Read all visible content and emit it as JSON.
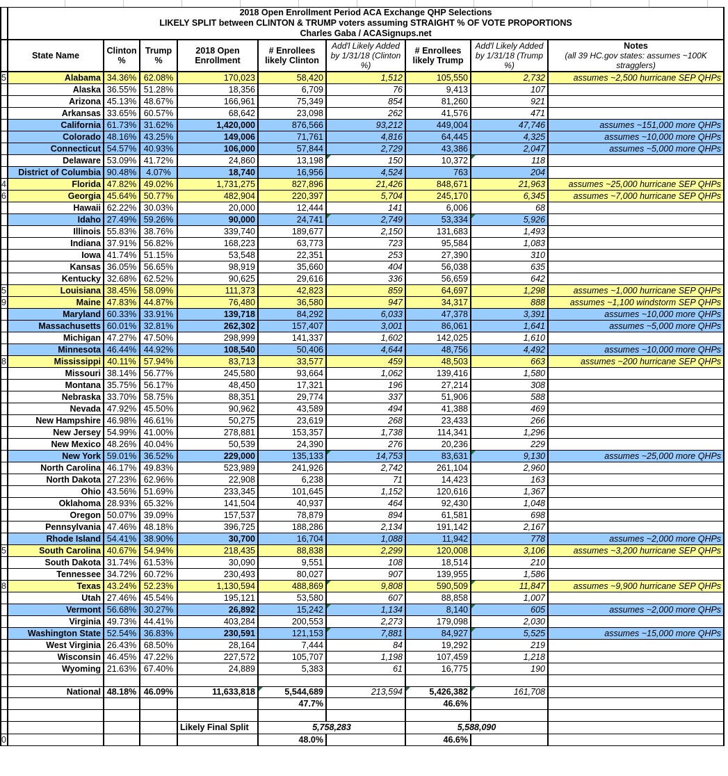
{
  "title": {
    "line1": "2018 Open Enrollment Period ACA Exchange QHP Selections",
    "line2": "LIKELY SPLIT between CLINTON & TRUMP voters assuming STRAIGHT % OF VOTE PROPORTIONS",
    "line3": "Charles Gaba / ACASignups.net"
  },
  "header": {
    "state": "State Name",
    "clinton": "Clinton %",
    "trump": "Trump %",
    "enrollment": "2018 Open Enrollment",
    "enrollees_clinton": "# Enrollees likely Clinton",
    "addl_clinton": "Add'l Likely Added by 1/31/18 (Clinton %)",
    "enrollees_trump": "# Enrollees likely Trump",
    "addl_trump": "Add'l Likely Added by 1/31/18 (Trump %)",
    "notes": "Notes",
    "notes_sub": "(all 39 HC.gov states: assumes ~100K stragglers)"
  },
  "colors": {
    "row_yellow": "#FFFF99",
    "row_blue": "#99CCFF",
    "national_yellow": "#FFFF00",
    "summary_yellow": "#FFFF99",
    "gridline": "#C9C9C9",
    "flag_green": "#207245",
    "border": "#000000"
  },
  "rows": [
    {
      "num": "5",
      "state": "Alabama",
      "clinton": "34.36%",
      "trump": "62.08%",
      "enrollment": "170,023",
      "clinton_enr": "58,420",
      "clinton_addl": "1,512",
      "trump_enr": "105,550",
      "trump_addl": "2,732",
      "note": "assumes ~2,500 hurricane SEP QHPs",
      "bg": "yellow",
      "bold": false,
      "flag": false
    },
    {
      "num": "",
      "state": "Alaska",
      "clinton": "36.55%",
      "trump": "51.28%",
      "enrollment": "18,356",
      "clinton_enr": "6,709",
      "clinton_addl": "76",
      "trump_enr": "9,413",
      "trump_addl": "107",
      "note": "",
      "bg": "white",
      "bold": false,
      "flag": false
    },
    {
      "num": "",
      "state": "Arizona",
      "clinton": "45.13%",
      "trump": "48.67%",
      "enrollment": "166,961",
      "clinton_enr": "75,349",
      "clinton_addl": "854",
      "trump_enr": "81,260",
      "trump_addl": "921",
      "note": "",
      "bg": "white",
      "bold": false,
      "flag": false
    },
    {
      "num": "",
      "state": "Arkansas",
      "clinton": "33.65%",
      "trump": "60.57%",
      "enrollment": "68,642",
      "clinton_enr": "23,098",
      "clinton_addl": "262",
      "trump_enr": "41,576",
      "trump_addl": "471",
      "note": "",
      "bg": "white",
      "bold": false,
      "flag": false
    },
    {
      "num": "",
      "state": "California",
      "clinton": "61.73%",
      "trump": "31.62%",
      "enrollment": "1,420,000",
      "clinton_enr": "876,566",
      "clinton_addl": "93,212",
      "trump_enr": "449,004",
      "trump_addl": "47,746",
      "note": "assumes ~151,000 more QHPs",
      "bg": "blue",
      "bold": true,
      "flag": false
    },
    {
      "num": "",
      "state": "Colorado",
      "clinton": "48.16%",
      "trump": "43.25%",
      "enrollment": "149,006",
      "clinton_enr": "71,761",
      "clinton_addl": "4,816",
      "trump_enr": "64,445",
      "trump_addl": "4,325",
      "note": "assumes ~10,000 more QHPs",
      "bg": "blue",
      "bold": true,
      "flag": false
    },
    {
      "num": "",
      "state": "Connecticut",
      "clinton": "54.57%",
      "trump": "40.93%",
      "enrollment": "106,000",
      "clinton_enr": "57,844",
      "clinton_addl": "2,729",
      "trump_enr": "43,386",
      "trump_addl": "2,047",
      "note": "assumes ~5,000 more QHPs",
      "bg": "blue",
      "bold": true,
      "flag": false
    },
    {
      "num": "",
      "state": "Delaware",
      "clinton": "53.09%",
      "trump": "41.72%",
      "enrollment": "24,860",
      "clinton_enr": "13,198",
      "clinton_addl": "150",
      "trump_enr": "10,372",
      "trump_addl": "118",
      "note": "",
      "bg": "white",
      "bold": false,
      "flag": true
    },
    {
      "num": "",
      "state": "District of Columbia",
      "clinton": "90.48%",
      "trump": "4.07%",
      "enrollment": "18,740",
      "clinton_enr": "16,956",
      "clinton_addl": "4,524",
      "trump_enr": "763",
      "trump_addl": "204",
      "note": "",
      "bg": "blue",
      "bold": true,
      "flag": false
    },
    {
      "num": "4",
      "state": "Florida",
      "clinton": "47.82%",
      "trump": "49.02%",
      "enrollment": "1,731,275",
      "clinton_enr": "827,896",
      "clinton_addl": "21,426",
      "trump_enr": "848,671",
      "trump_addl": "21,963",
      "note": "assumes ~25,000 hurricane SEP QHPs",
      "bg": "yellow",
      "bold": false,
      "flag": false
    },
    {
      "num": "6",
      "state": "Georgia",
      "clinton": "45.64%",
      "trump": "50.77%",
      "enrollment": "482,904",
      "clinton_enr": "220,397",
      "clinton_addl": "5,704",
      "trump_enr": "245,170",
      "trump_addl": "6,345",
      "note": "assumes ~7,000 hurricane SEP QHPs",
      "bg": "yellow",
      "bold": false,
      "flag": false
    },
    {
      "num": "",
      "state": "Hawaii",
      "clinton": "62.22%",
      "trump": "30.03%",
      "enrollment": "20,000",
      "clinton_enr": "12,444",
      "clinton_addl": "141",
      "trump_enr": "6,006",
      "trump_addl": "68",
      "note": "",
      "bg": "white",
      "bold": false,
      "flag": false
    },
    {
      "num": "",
      "state": "Idaho",
      "clinton": "27.49%",
      "trump": "59.26%",
      "enrollment": "90,000",
      "clinton_enr": "24,741",
      "clinton_addl": "2,749",
      "trump_enr": "53,334",
      "trump_addl": "5,926",
      "note": "",
      "bg": "blue",
      "bold": true,
      "flag": true
    },
    {
      "num": "",
      "state": "Illinois",
      "clinton": "55.83%",
      "trump": "38.76%",
      "enrollment": "339,740",
      "clinton_enr": "189,677",
      "clinton_addl": "2,150",
      "trump_enr": "131,683",
      "trump_addl": "1,493",
      "note": "",
      "bg": "white",
      "bold": false,
      "flag": false
    },
    {
      "num": "",
      "state": "Indiana",
      "clinton": "37.91%",
      "trump": "56.82%",
      "enrollment": "168,223",
      "clinton_enr": "63,773",
      "clinton_addl": "723",
      "trump_enr": "95,584",
      "trump_addl": "1,083",
      "note": "",
      "bg": "white",
      "bold": false,
      "flag": false
    },
    {
      "num": "",
      "state": "Iowa",
      "clinton": "41.74%",
      "trump": "51.15%",
      "enrollment": "53,548",
      "clinton_enr": "22,351",
      "clinton_addl": "253",
      "trump_enr": "27,390",
      "trump_addl": "310",
      "note": "",
      "bg": "white",
      "bold": false,
      "flag": false
    },
    {
      "num": "",
      "state": "Kansas",
      "clinton": "36.05%",
      "trump": "56.65%",
      "enrollment": "98,919",
      "clinton_enr": "35,660",
      "clinton_addl": "404",
      "trump_enr": "56,038",
      "trump_addl": "635",
      "note": "",
      "bg": "white",
      "bold": false,
      "flag": false
    },
    {
      "num": "",
      "state": "Kentucky",
      "clinton": "32.68%",
      "trump": "62.52%",
      "enrollment": "90,625",
      "clinton_enr": "29,616",
      "clinton_addl": "336",
      "trump_enr": "56,659",
      "trump_addl": "642",
      "note": "",
      "bg": "white",
      "bold": false,
      "flag": false
    },
    {
      "num": "5",
      "state": "Louisiana",
      "clinton": "38.45%",
      "trump": "58.09%",
      "enrollment": "111,373",
      "clinton_enr": "42,823",
      "clinton_addl": "859",
      "trump_enr": "64,697",
      "trump_addl": "1,298",
      "note": "assumes ~1,000 hurricane SEP QHPs",
      "bg": "yellow",
      "bold": false,
      "flag": false
    },
    {
      "num": "9",
      "state": "Maine",
      "clinton": "47.83%",
      "trump": "44.87%",
      "enrollment": "76,480",
      "clinton_enr": "36,580",
      "clinton_addl": "947",
      "trump_enr": "34,317",
      "trump_addl": "888",
      "note": "assumes ~1,100 windstorm SEP QHPs",
      "bg": "yellow",
      "bold": false,
      "flag": false
    },
    {
      "num": "",
      "state": "Maryland",
      "clinton": "60.33%",
      "trump": "33.91%",
      "enrollment": "139,718",
      "clinton_enr": "84,292",
      "clinton_addl": "6,033",
      "trump_enr": "47,378",
      "trump_addl": "3,391",
      "note": "assumes ~10,000 more QHPs",
      "bg": "blue",
      "bold": true,
      "flag": false
    },
    {
      "num": "",
      "state": "Massachusetts",
      "clinton": "60.01%",
      "trump": "32.81%",
      "enrollment": "262,302",
      "clinton_enr": "157,407",
      "clinton_addl": "3,001",
      "trump_enr": "86,061",
      "trump_addl": "1,641",
      "note": "assumes ~5,000 more QHPs",
      "bg": "blue",
      "bold": true,
      "flag": false
    },
    {
      "num": "",
      "state": "Michigan",
      "clinton": "47.27%",
      "trump": "47.50%",
      "enrollment": "298,999",
      "clinton_enr": "141,337",
      "clinton_addl": "1,602",
      "trump_enr": "142,025",
      "trump_addl": "1,610",
      "note": "",
      "bg": "white",
      "bold": false,
      "flag": false
    },
    {
      "num": "",
      "state": "Minnesota",
      "clinton": "46.44%",
      "trump": "44.92%",
      "enrollment": "108,540",
      "clinton_enr": "50,406",
      "clinton_addl": "4,644",
      "trump_enr": "48,756",
      "trump_addl": "4,492",
      "note": "assumes ~10,000 more QHPs",
      "bg": "blue",
      "bold": true,
      "flag": false
    },
    {
      "num": "8",
      "state": "Mississippi",
      "clinton": "40.11%",
      "trump": "57.94%",
      "enrollment": "83,713",
      "clinton_enr": "33,577",
      "clinton_addl": "459",
      "trump_enr": "48,503",
      "trump_addl": "663",
      "note": "assumes ~200 hurricane SEP QHPs",
      "bg": "yellow",
      "bold": false,
      "flag": false
    },
    {
      "num": "",
      "state": "Missouri",
      "clinton": "38.14%",
      "trump": "56.77%",
      "enrollment": "245,580",
      "clinton_enr": "93,664",
      "clinton_addl": "1,062",
      "trump_enr": "139,416",
      "trump_addl": "1,580",
      "note": "",
      "bg": "white",
      "bold": false,
      "flag": false
    },
    {
      "num": "",
      "state": "Montana",
      "clinton": "35.75%",
      "trump": "56.17%",
      "enrollment": "48,450",
      "clinton_enr": "17,321",
      "clinton_addl": "196",
      "trump_enr": "27,214",
      "trump_addl": "308",
      "note": "",
      "bg": "white",
      "bold": false,
      "flag": false
    },
    {
      "num": "",
      "state": "Nebraska",
      "clinton": "33.70%",
      "trump": "58.75%",
      "enrollment": "88,351",
      "clinton_enr": "29,774",
      "clinton_addl": "337",
      "trump_enr": "51,906",
      "trump_addl": "588",
      "note": "",
      "bg": "white",
      "bold": false,
      "flag": false
    },
    {
      "num": "",
      "state": "Nevada",
      "clinton": "47.92%",
      "trump": "45.50%",
      "enrollment": "90,962",
      "clinton_enr": "43,589",
      "clinton_addl": "494",
      "trump_enr": "41,388",
      "trump_addl": "469",
      "note": "",
      "bg": "white",
      "bold": false,
      "flag": false
    },
    {
      "num": "",
      "state": "New Hampshire",
      "clinton": "46.98%",
      "trump": "46.61%",
      "enrollment": "50,275",
      "clinton_enr": "23,619",
      "clinton_addl": "268",
      "trump_enr": "23,433",
      "trump_addl": "266",
      "note": "",
      "bg": "white",
      "bold": false,
      "flag": false
    },
    {
      "num": "",
      "state": "New Jersey",
      "clinton": "54.99%",
      "trump": "41.00%",
      "enrollment": "278,881",
      "clinton_enr": "153,357",
      "clinton_addl": "1,738",
      "trump_enr": "114,341",
      "trump_addl": "1,296",
      "note": "",
      "bg": "white",
      "bold": false,
      "flag": false
    },
    {
      "num": "",
      "state": "New Mexico",
      "clinton": "48.26%",
      "trump": "40.04%",
      "enrollment": "50,539",
      "clinton_enr": "24,390",
      "clinton_addl": "276",
      "trump_enr": "20,236",
      "trump_addl": "229",
      "note": "",
      "bg": "white",
      "bold": false,
      "flag": false
    },
    {
      "num": "",
      "state": "New York",
      "clinton": "59.01%",
      "trump": "36.52%",
      "enrollment": "229,000",
      "clinton_enr": "135,133",
      "clinton_addl": "14,753",
      "trump_enr": "83,631",
      "trump_addl": "9,130",
      "note": "assumes ~25,000 more QHPs",
      "bg": "blue",
      "bold": true,
      "flag": true
    },
    {
      "num": "",
      "state": "North Carolina",
      "clinton": "46.17%",
      "trump": "49.83%",
      "enrollment": "523,989",
      "clinton_enr": "241,926",
      "clinton_addl": "2,742",
      "trump_enr": "261,104",
      "trump_addl": "2,960",
      "note": "",
      "bg": "white",
      "bold": false,
      "flag": false
    },
    {
      "num": "",
      "state": "North Dakota",
      "clinton": "27.23%",
      "trump": "62.96%",
      "enrollment": "22,908",
      "clinton_enr": "6,238",
      "clinton_addl": "71",
      "trump_enr": "14,423",
      "trump_addl": "163",
      "note": "",
      "bg": "white",
      "bold": false,
      "flag": false
    },
    {
      "num": "",
      "state": "Ohio",
      "clinton": "43.56%",
      "trump": "51.69%",
      "enrollment": "233,345",
      "clinton_enr": "101,645",
      "clinton_addl": "1,152",
      "trump_enr": "120,616",
      "trump_addl": "1,367",
      "note": "",
      "bg": "white",
      "bold": false,
      "flag": false
    },
    {
      "num": "",
      "state": "Oklahoma",
      "clinton": "28.93%",
      "trump": "65.32%",
      "enrollment": "141,504",
      "clinton_enr": "40,937",
      "clinton_addl": "464",
      "trump_enr": "92,430",
      "trump_addl": "1,048",
      "note": "",
      "bg": "white",
      "bold": false,
      "flag": false
    },
    {
      "num": "",
      "state": "Oregon",
      "clinton": "50.07%",
      "trump": "39.09%",
      "enrollment": "157,537",
      "clinton_enr": "78,879",
      "clinton_addl": "894",
      "trump_enr": "61,581",
      "trump_addl": "698",
      "note": "",
      "bg": "white",
      "bold": false,
      "flag": false
    },
    {
      "num": "",
      "state": "Pennsylvania",
      "clinton": "47.46%",
      "trump": "48.18%",
      "enrollment": "396,725",
      "clinton_enr": "188,286",
      "clinton_addl": "2,134",
      "trump_enr": "191,142",
      "trump_addl": "2,167",
      "note": "",
      "bg": "white",
      "bold": false,
      "flag": false
    },
    {
      "num": "",
      "state": "Rhode Island",
      "clinton": "54.41%",
      "trump": "38.90%",
      "enrollment": "30,700",
      "clinton_enr": "16,704",
      "clinton_addl": "1,088",
      "trump_enr": "11,942",
      "trump_addl": "778",
      "note": "assumes ~2,000 more QHPs",
      "bg": "blue",
      "bold": true,
      "flag": false
    },
    {
      "num": "5",
      "state": "South Carolina",
      "clinton": "40.67%",
      "trump": "54.94%",
      "enrollment": "218,435",
      "clinton_enr": "88,838",
      "clinton_addl": "2,299",
      "trump_enr": "120,008",
      "trump_addl": "3,106",
      "note": "assumes ~3,200 hurricane SEP QHPs",
      "bg": "yellow",
      "bold": false,
      "flag": false
    },
    {
      "num": "",
      "state": "South Dakota",
      "clinton": "31.74%",
      "trump": "61.53%",
      "enrollment": "30,090",
      "clinton_enr": "9,551",
      "clinton_addl": "108",
      "trump_enr": "18,514",
      "trump_addl": "210",
      "note": "",
      "bg": "white",
      "bold": false,
      "flag": false
    },
    {
      "num": "",
      "state": "Tennessee",
      "clinton": "34.72%",
      "trump": "60.72%",
      "enrollment": "230,493",
      "clinton_enr": "80,027",
      "clinton_addl": "907",
      "trump_enr": "139,955",
      "trump_addl": "1,586",
      "note": "",
      "bg": "white",
      "bold": false,
      "flag": false
    },
    {
      "num": "8",
      "state": "Texas",
      "clinton": "43.24%",
      "trump": "52.23%",
      "enrollment": "1,130,594",
      "clinton_enr": "488,869",
      "clinton_addl": "9,808",
      "trump_enr": "590,509",
      "trump_addl": "11,847",
      "note": "assumes ~9,900 hurricane SEP QHPs",
      "bg": "yellow",
      "bold": false,
      "flag": true
    },
    {
      "num": "",
      "state": "Utah",
      "clinton": "27.46%",
      "trump": "45.54%",
      "enrollment": "195,121",
      "clinton_enr": "53,580",
      "clinton_addl": "607",
      "trump_enr": "88,858",
      "trump_addl": "1,007",
      "note": "",
      "bg": "white",
      "bold": false,
      "flag": false
    },
    {
      "num": "",
      "state": "Vermont",
      "clinton": "56.68%",
      "trump": "30.27%",
      "enrollment": "26,892",
      "clinton_enr": "15,242",
      "clinton_addl": "1,134",
      "trump_enr": "8,140",
      "trump_addl": "605",
      "note": "assumes ~2,000 more QHPs",
      "bg": "blue",
      "bold": true,
      "flag": true
    },
    {
      "num": "",
      "state": "Virginia",
      "clinton": "49.73%",
      "trump": "44.41%",
      "enrollment": "403,284",
      "clinton_enr": "200,553",
      "clinton_addl": "2,273",
      "trump_enr": "179,098",
      "trump_addl": "2,030",
      "note": "",
      "bg": "white",
      "bold": false,
      "flag": false
    },
    {
      "num": "",
      "state": "Washington State",
      "clinton": "52.54%",
      "trump": "36.83%",
      "enrollment": "230,591",
      "clinton_enr": "121,153",
      "clinton_addl": "7,881",
      "trump_enr": "84,927",
      "trump_addl": "5,525",
      "note": "assumes ~15,000 more QHPs",
      "bg": "blue",
      "bold": true,
      "flag": true
    },
    {
      "num": "",
      "state": "West Virginia",
      "clinton": "26.43%",
      "trump": "68.50%",
      "enrollment": "28,164",
      "clinton_enr": "7,444",
      "clinton_addl": "84",
      "trump_enr": "19,292",
      "trump_addl": "219",
      "note": "",
      "bg": "white",
      "bold": false,
      "flag": false
    },
    {
      "num": "",
      "state": "Wisconsin",
      "clinton": "46.45%",
      "trump": "47.22%",
      "enrollment": "227,572",
      "clinton_enr": "105,707",
      "clinton_addl": "1,198",
      "trump_enr": "107,459",
      "trump_addl": "1,218",
      "note": "",
      "bg": "white",
      "bold": false,
      "flag": false
    },
    {
      "num": "",
      "state": "Wyoming",
      "clinton": "21.63%",
      "trump": "67.40%",
      "enrollment": "24,889",
      "clinton_enr": "5,383",
      "clinton_addl": "61",
      "trump_enr": "16,775",
      "trump_addl": "190",
      "note": "",
      "bg": "white",
      "bold": false,
      "flag": false
    }
  ],
  "national": {
    "state": "National",
    "clinton": "48.18%",
    "trump": "46.09%",
    "enrollment": "11,633,818",
    "clinton_enr": "5,544,689",
    "clinton_addl": "213,594",
    "trump_enr": "5,426,382",
    "trump_addl": "161,708",
    "clinton_pct": "47.7%",
    "trump_pct": "46.6%"
  },
  "summary": {
    "label": "Likely Final Split",
    "clinton_total": "5,758,283",
    "trump_total": "5,588,090",
    "clinton_pct": "48.0%",
    "trump_pct": "46.6%",
    "row_num": "0"
  }
}
